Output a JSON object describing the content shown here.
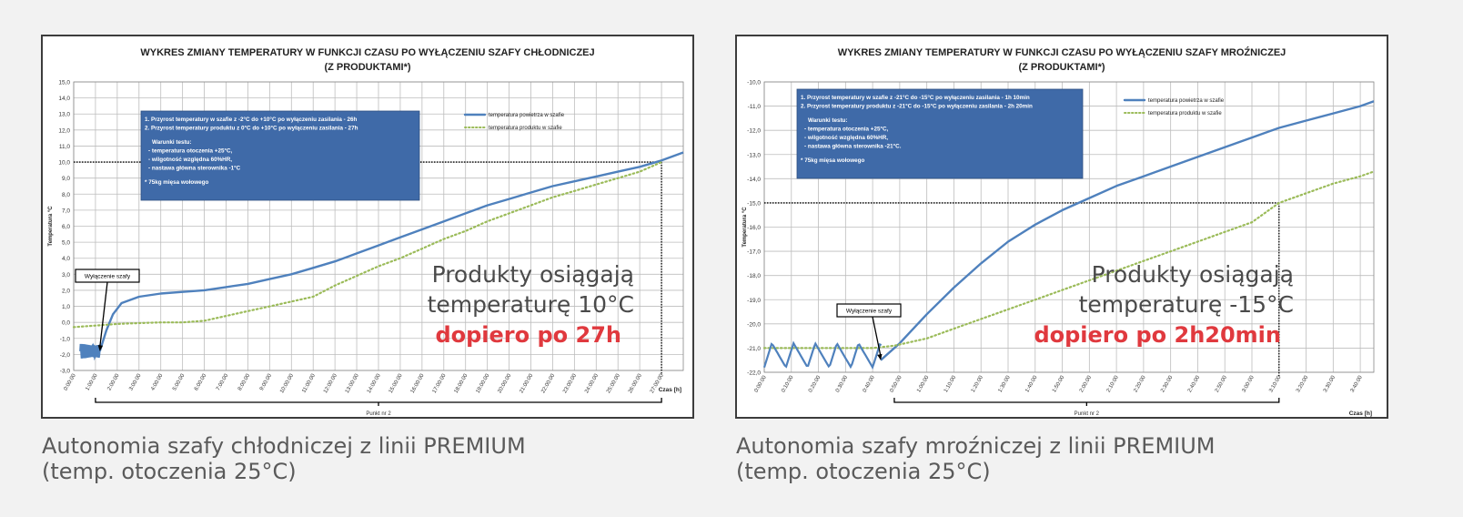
{
  "charts": [
    {
      "title_line1": "WYKRES ZMIANY TEMPERATURY W FUNKCJI CZASU PO WYŁĄCZENIU SZAFY CHŁODNICZEJ",
      "title_line2": "(Z  PRODUKTAMI*)",
      "ylabel": "Temperatura °C",
      "xlabel": "Czas [h]",
      "bracket_label": "Punkt nr 2",
      "infobox": [
        "1. Przyrost temperatury  w szafie z -2°C  do +10°C po wyłączeniu zasilania - 26h",
        "2. Przyrost temperatury  produktu z 0°C do +10°C po wyłączeniu zasilania - 27h",
        "",
        "Warunki testu:",
        "- temperatura otoczenia +25°C,",
        "- wilgotność względna  60%HR,",
        "- nastawa główna sterownika  -1°C",
        "",
        "* 75kg mięsa wołowego"
      ],
      "legend": [
        "temperatura powietrza w szafie",
        "temperatura produktu w szafie"
      ],
      "callout": "Wyłączenie szafy",
      "overlay": {
        "line1": "Produkty osiągają",
        "line2": "temperaturę 10°C",
        "line3": "dopiero po 27h"
      },
      "colors": {
        "air": "#4f81bd",
        "product": "#9bbb59",
        "highlight": "#e0393e",
        "infobox": "#3f6aa8"
      }
    },
    {
      "title_line1": "WYKRES ZMIANY TEMPERATURY W FUNKCJI CZASU PO WYŁĄCZENIU SZAFY MROŹNICZEJ",
      "title_line2": "(Z  PRODUKTAMI*)",
      "ylabel": "Temperatura °C",
      "xlabel": "Czas [h]",
      "bracket_label": "Punkt nr 2",
      "infobox": [
        "1. Przyrost temperatury  w szafie z -21°C  do -15°C po wyłączeniu zasilania - 1h 10min",
        "2. Przyrost temperatury  produktu z -21°C  do -15°C po wyłączeniu zasilania -  2h 20min",
        "",
        "Warunki testu:",
        "- temperatura otoczenia +25°C,",
        "- wilgotność względna 60%HR,",
        "- nastawa główna sterownika  -21°C.",
        "",
        "* 75kg mięsa wołowego"
      ],
      "legend": [
        "temperatura powietrza w szafie",
        "temperatura produktu w szafie"
      ],
      "callout": "Wyłączenie szafy",
      "overlay": {
        "line1": "Produkty osiągają",
        "line2": "temperaturę -15°C",
        "line3": "dopiero po 2h20min"
      },
      "colors": {
        "air": "#4f81bd",
        "product": "#9bbb59",
        "highlight": "#e0393e",
        "infobox": "#3f6aa8"
      }
    }
  ],
  "chart_data": [
    {
      "type": "line",
      "ylim": [
        -3,
        15
      ],
      "yticks": [
        "-3,0",
        "-2,0",
        "-1,0",
        "0,0",
        "1,0",
        "2,0",
        "3,0",
        "4,0",
        "5,0",
        "6,0",
        "7,0",
        "8,0",
        "9,0",
        "10,0",
        "11,0",
        "12,0",
        "13,0",
        "14,0",
        "15,0"
      ],
      "xlim": [
        0,
        28
      ],
      "xticks": [
        "0:00:00",
        "1:00:00",
        "2:00:00",
        "3:00:00",
        "4:00:00",
        "5:00:00",
        "6:00:00",
        "7:00:00",
        "8:00:00",
        "9:00:00",
        "10:00:00",
        "11:00:00",
        "12:00:00",
        "13:00:00",
        "14:00:00",
        "15:00:00",
        "16:00:00",
        "17:00:00",
        "18:00:00",
        "19:00:00",
        "20:00:00",
        "21:00:00",
        "22:00:00",
        "23:00:00",
        "24:00:00",
        "25:00:00",
        "26:00:00",
        "27:00:00"
      ],
      "grid": true,
      "threshold": {
        "y": 10,
        "x": 27
      },
      "bracket": [
        1,
        27
      ],
      "shutdown": {
        "x": 1.2,
        "y": -1.8
      },
      "series": [
        {
          "name": "temperatura powietrza w szafie",
          "style": "solid",
          "x": [
            1.2,
            1.5,
            1.8,
            2.2,
            3,
            4,
            5,
            6,
            7,
            8,
            9,
            10,
            11,
            12,
            13,
            14,
            15,
            16,
            17,
            18,
            19,
            20,
            21,
            22,
            23,
            24,
            25,
            26,
            27,
            28
          ],
          "y": [
            -1.8,
            -0.5,
            0.5,
            1.2,
            1.6,
            1.8,
            1.9,
            2.0,
            2.2,
            2.4,
            2.7,
            3.0,
            3.4,
            3.8,
            4.3,
            4.8,
            5.3,
            5.8,
            6.3,
            6.8,
            7.3,
            7.7,
            8.1,
            8.5,
            8.8,
            9.1,
            9.4,
            9.7,
            10.1,
            10.6
          ]
        },
        {
          "name": "temperatura produktu w szafie",
          "style": "dotted",
          "x": [
            0,
            1,
            2,
            3,
            4,
            5,
            6,
            7,
            8,
            9,
            10,
            11,
            12,
            13,
            14,
            15,
            16,
            17,
            18,
            19,
            20,
            21,
            22,
            23,
            24,
            25,
            26,
            27
          ],
          "y": [
            -0.3,
            -0.2,
            -0.1,
            -0.05,
            0.0,
            0.0,
            0.1,
            0.4,
            0.7,
            1.0,
            1.3,
            1.6,
            2.3,
            2.9,
            3.5,
            4.0,
            4.6,
            5.2,
            5.7,
            6.3,
            6.8,
            7.3,
            7.8,
            8.2,
            8.6,
            9.0,
            9.4,
            10.0
          ]
        }
      ]
    },
    {
      "type": "line",
      "ylim": [
        -22,
        -10
      ],
      "yticks": [
        "-22,0",
        "-21,0",
        "-20,0",
        "-19,0",
        "-18,0",
        "-17,0",
        "-16,0",
        "-15,0",
        "-14,0",
        "-13,0",
        "-12,0",
        "-11,0",
        "-10,0"
      ],
      "xlim": [
        0,
        225
      ],
      "xticks": [
        "0:00:00",
        "0:10:00",
        "0:20:00",
        "0:30:00",
        "0:40:00",
        "0:50:00",
        "1:00:00",
        "1:10:00",
        "1:20:00",
        "1:30:00",
        "1:40:00",
        "1:50:00",
        "2:00:00",
        "2:10:00",
        "2:20:00",
        "2:30:00",
        "2:40:00",
        "2:50:00",
        "3:00:00",
        "3:10:00",
        "3:20:00",
        "3:30:00",
        "3:40:00"
      ],
      "grid": true,
      "threshold": {
        "y": -15,
        "x": 190
      },
      "bracket": [
        48,
        190
      ],
      "shutdown": {
        "x": 43,
        "y": -21.5
      },
      "series": [
        {
          "name": "temperatura powietrza w szafie",
          "style": "solid",
          "x": [
            43,
            50,
            60,
            70,
            80,
            90,
            100,
            110,
            120,
            130,
            140,
            150,
            160,
            170,
            180,
            190,
            200,
            210,
            220,
            225
          ],
          "y": [
            -21.5,
            -20.8,
            -19.6,
            -18.5,
            -17.5,
            -16.6,
            -15.9,
            -15.3,
            -14.8,
            -14.3,
            -13.9,
            -13.5,
            -13.1,
            -12.7,
            -12.3,
            -11.9,
            -11.6,
            -11.3,
            -11.0,
            -10.8
          ]
        },
        {
          "name": "temperatura produktu w szafie",
          "style": "dotted",
          "x": [
            0,
            10,
            20,
            30,
            40,
            48,
            60,
            70,
            80,
            90,
            100,
            110,
            120,
            130,
            140,
            150,
            160,
            170,
            180,
            190,
            200,
            210,
            220,
            225
          ],
          "y": [
            -21.0,
            -21.0,
            -21.0,
            -21.0,
            -21.0,
            -20.9,
            -20.6,
            -20.2,
            -19.8,
            -19.4,
            -19.0,
            -18.6,
            -18.2,
            -17.8,
            -17.4,
            -17.0,
            -16.6,
            -16.2,
            -15.8,
            -15.0,
            -14.6,
            -14.2,
            -13.9,
            -13.7
          ]
        }
      ]
    }
  ],
  "captions": [
    {
      "line1": "Autonomia szafy chłodniczej z linii PREMIUM",
      "line2": "(temp. otoczenia 25°C)"
    },
    {
      "line1": "Autonomia szafy mroźniczej z linii PREMIUM",
      "line2": "(temp. otoczenia 25°C)"
    }
  ]
}
